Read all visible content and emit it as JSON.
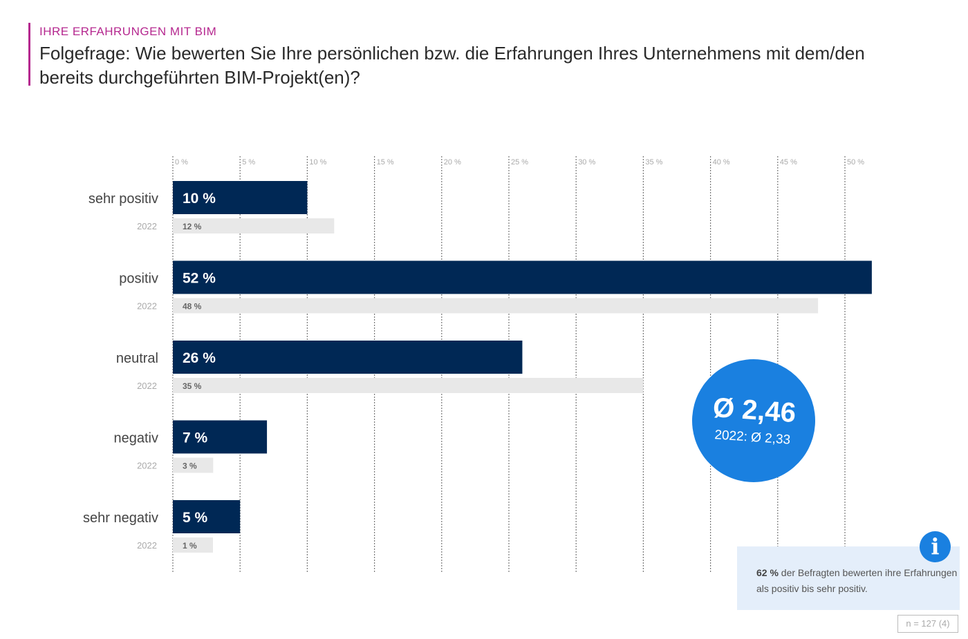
{
  "header": {
    "kicker": "IHRE ERFAHRUNGEN MIT BIM",
    "title": "Folgefrage: Wie bewerten Sie Ihre persönlichen bzw. die Erfahrungen Ihres Unternehmens mit dem/den bereits durchgeführten BIM-Projekt(en)?"
  },
  "chart_data": {
    "type": "bar",
    "orientation": "horizontal",
    "categories": [
      "sehr positiv",
      "positiv",
      "neutral",
      "negativ",
      "sehr negativ"
    ],
    "series": [
      {
        "name": "",
        "values": [
          10,
          52,
          26,
          7,
          5
        ],
        "labels": [
          "10 %",
          "52 %",
          "26 %",
          "7 %",
          "5 %"
        ],
        "color": "#002855"
      },
      {
        "name": "2022",
        "values": [
          12,
          48,
          35,
          3,
          1
        ],
        "labels": [
          "12 %",
          "48 %",
          "35 %",
          "3 %",
          "1 %"
        ],
        "color": "#e8e8e8"
      }
    ],
    "xticks": [
      "0 %",
      "5 %",
      "10 %",
      "15 %",
      "20 %",
      "25 %",
      "30 %",
      "35 %",
      "40 %",
      "45 %",
      "50 %"
    ],
    "xlim": [
      0,
      50
    ],
    "grid": true,
    "series_label": "2022"
  },
  "average": {
    "value": "Ø 2,46",
    "previous": "2022: Ø 2,33",
    "color": "#1a80e0"
  },
  "info": {
    "highlight": "62 %",
    "text": " der Befragten bewerten ihre Erfahrungen als positiv bis sehr positiv.",
    "icon": "info-icon"
  },
  "sample": "n = 127 (4)"
}
